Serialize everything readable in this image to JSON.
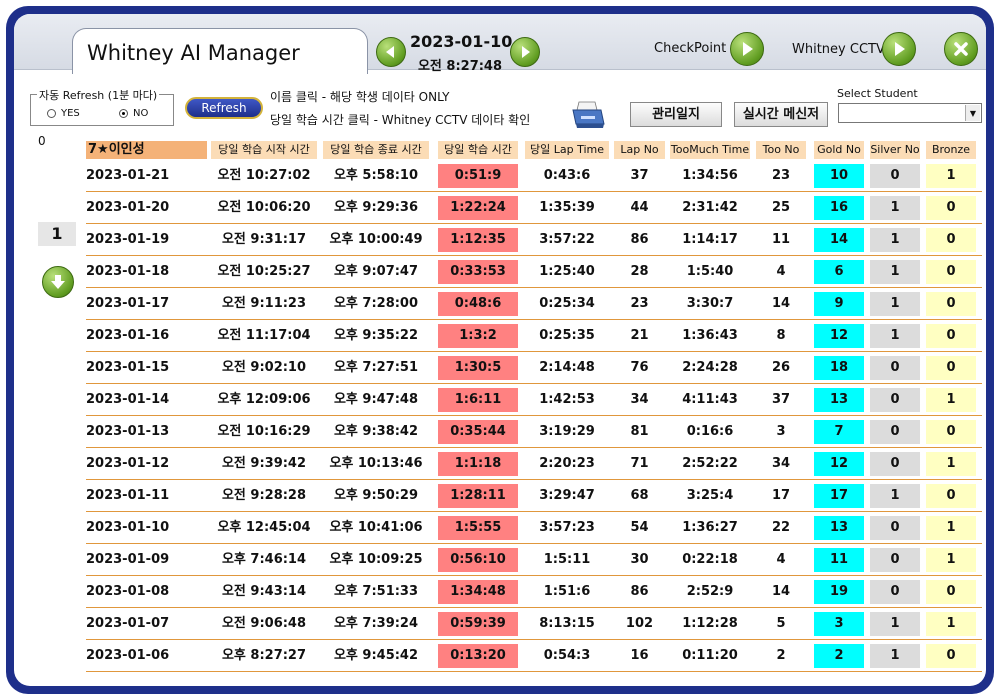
{
  "app": {
    "title": "Whitney AI Manager"
  },
  "nav": {
    "date": "2023-01-10",
    "time": "오전 8:27:48"
  },
  "top_links": {
    "checkpoint": "CheckPoint",
    "cctv": "Whitney CCTV"
  },
  "refresh": {
    "legend": "자동 Refresh (1분 마다)",
    "yes": "YES",
    "no": "NO",
    "selected": "NO",
    "button": "Refresh"
  },
  "info": {
    "line1": "이름 클릭 - 해당 학생 데이타 ONLY",
    "line2": "당일 학습 시간 클릭 - Whitney CCTV 데이타 확인"
  },
  "buttons": {
    "log": "관리일지",
    "messenger": "실시간 메신저"
  },
  "student_select": {
    "label": "Select Student",
    "value": ""
  },
  "side": {
    "counter": "0",
    "page": "1"
  },
  "colors": {
    "header": "#fbdcb6",
    "name_header": "#f4b278",
    "study": "#ff8181",
    "gold": "#00ffff",
    "silver": "#dcdcdc",
    "bronze": "#ffffc2",
    "frame": "#1e2f8a"
  },
  "icons": {
    "prev": "left-arrow-icon",
    "next": "right-arrow-icon",
    "checkpoint": "play-icon",
    "cctv": "play-icon",
    "close": "close-icon",
    "print": "printer-icon",
    "down": "down-arrow-icon"
  },
  "table": {
    "headers": [
      "7★이인성",
      "당일 학습 시작 시간",
      "당일 학습 종료 시간",
      "당일 학습 시간",
      "당일 Lap Time",
      "Lap No",
      "TooMuch Time",
      "Too No",
      "Gold No",
      "Silver No",
      "Bronze"
    ],
    "rows": [
      [
        "2023-01-21",
        "오전 10:27:02",
        "오후 5:58:10",
        "0:51:9",
        "0:43:6",
        "37",
        "1:34:56",
        "23",
        "10",
        "0",
        "1"
      ],
      [
        "2023-01-20",
        "오전 10:06:20",
        "오후 9:29:36",
        "1:22:24",
        "1:35:39",
        "44",
        "2:31:42",
        "25",
        "16",
        "1",
        "0"
      ],
      [
        "2023-01-19",
        "오전 9:31:17",
        "오후 10:00:49",
        "1:12:35",
        "3:57:22",
        "86",
        "1:14:17",
        "11",
        "14",
        "1",
        "0"
      ],
      [
        "2023-01-18",
        "오전 10:25:27",
        "오후 9:07:47",
        "0:33:53",
        "1:25:40",
        "28",
        "1:5:40",
        "4",
        "6",
        "1",
        "0"
      ],
      [
        "2023-01-17",
        "오전 9:11:23",
        "오후 7:28:00",
        "0:48:6",
        "0:25:34",
        "23",
        "3:30:7",
        "14",
        "9",
        "1",
        "0"
      ],
      [
        "2023-01-16",
        "오전 11:17:04",
        "오후 9:35:22",
        "1:3:2",
        "0:25:35",
        "21",
        "1:36:43",
        "8",
        "12",
        "1",
        "0"
      ],
      [
        "2023-01-15",
        "오전 9:02:10",
        "오후 7:27:51",
        "1:30:5",
        "2:14:48",
        "76",
        "2:24:28",
        "26",
        "18",
        "0",
        "0"
      ],
      [
        "2023-01-14",
        "오후 12:09:06",
        "오후 9:47:48",
        "1:6:11",
        "1:42:53",
        "34",
        "4:11:43",
        "37",
        "13",
        "0",
        "1"
      ],
      [
        "2023-01-13",
        "오전 10:16:29",
        "오후 9:38:42",
        "0:35:44",
        "3:19:29",
        "81",
        "0:16:6",
        "3",
        "7",
        "0",
        "0"
      ],
      [
        "2023-01-12",
        "오전 9:39:42",
        "오후 10:13:46",
        "1:1:18",
        "2:20:23",
        "71",
        "2:52:22",
        "34",
        "12",
        "0",
        "1"
      ],
      [
        "2023-01-11",
        "오전 9:28:28",
        "오후 9:50:29",
        "1:28:11",
        "3:29:47",
        "68",
        "3:25:4",
        "17",
        "17",
        "1",
        "0"
      ],
      [
        "2023-01-10",
        "오후 12:45:04",
        "오후 10:41:06",
        "1:5:55",
        "3:57:23",
        "54",
        "1:36:27",
        "22",
        "13",
        "0",
        "1"
      ],
      [
        "2023-01-09",
        "오후 7:46:14",
        "오후 10:09:25",
        "0:56:10",
        "1:5:11",
        "30",
        "0:22:18",
        "4",
        "11",
        "0",
        "1"
      ],
      [
        "2023-01-08",
        "오전 9:43:14",
        "오후 7:51:33",
        "1:34:48",
        "1:51:6",
        "86",
        "2:52:9",
        "14",
        "19",
        "0",
        "0"
      ],
      [
        "2023-01-07",
        "오전 9:06:48",
        "오후 7:39:24",
        "0:59:39",
        "8:13:15",
        "102",
        "1:12:28",
        "5",
        "3",
        "1",
        "1"
      ],
      [
        "2023-01-06",
        "오후 8:27:27",
        "오후 9:45:42",
        "0:13:20",
        "0:54:3",
        "16",
        "0:11:20",
        "2",
        "2",
        "1",
        "0"
      ]
    ]
  }
}
